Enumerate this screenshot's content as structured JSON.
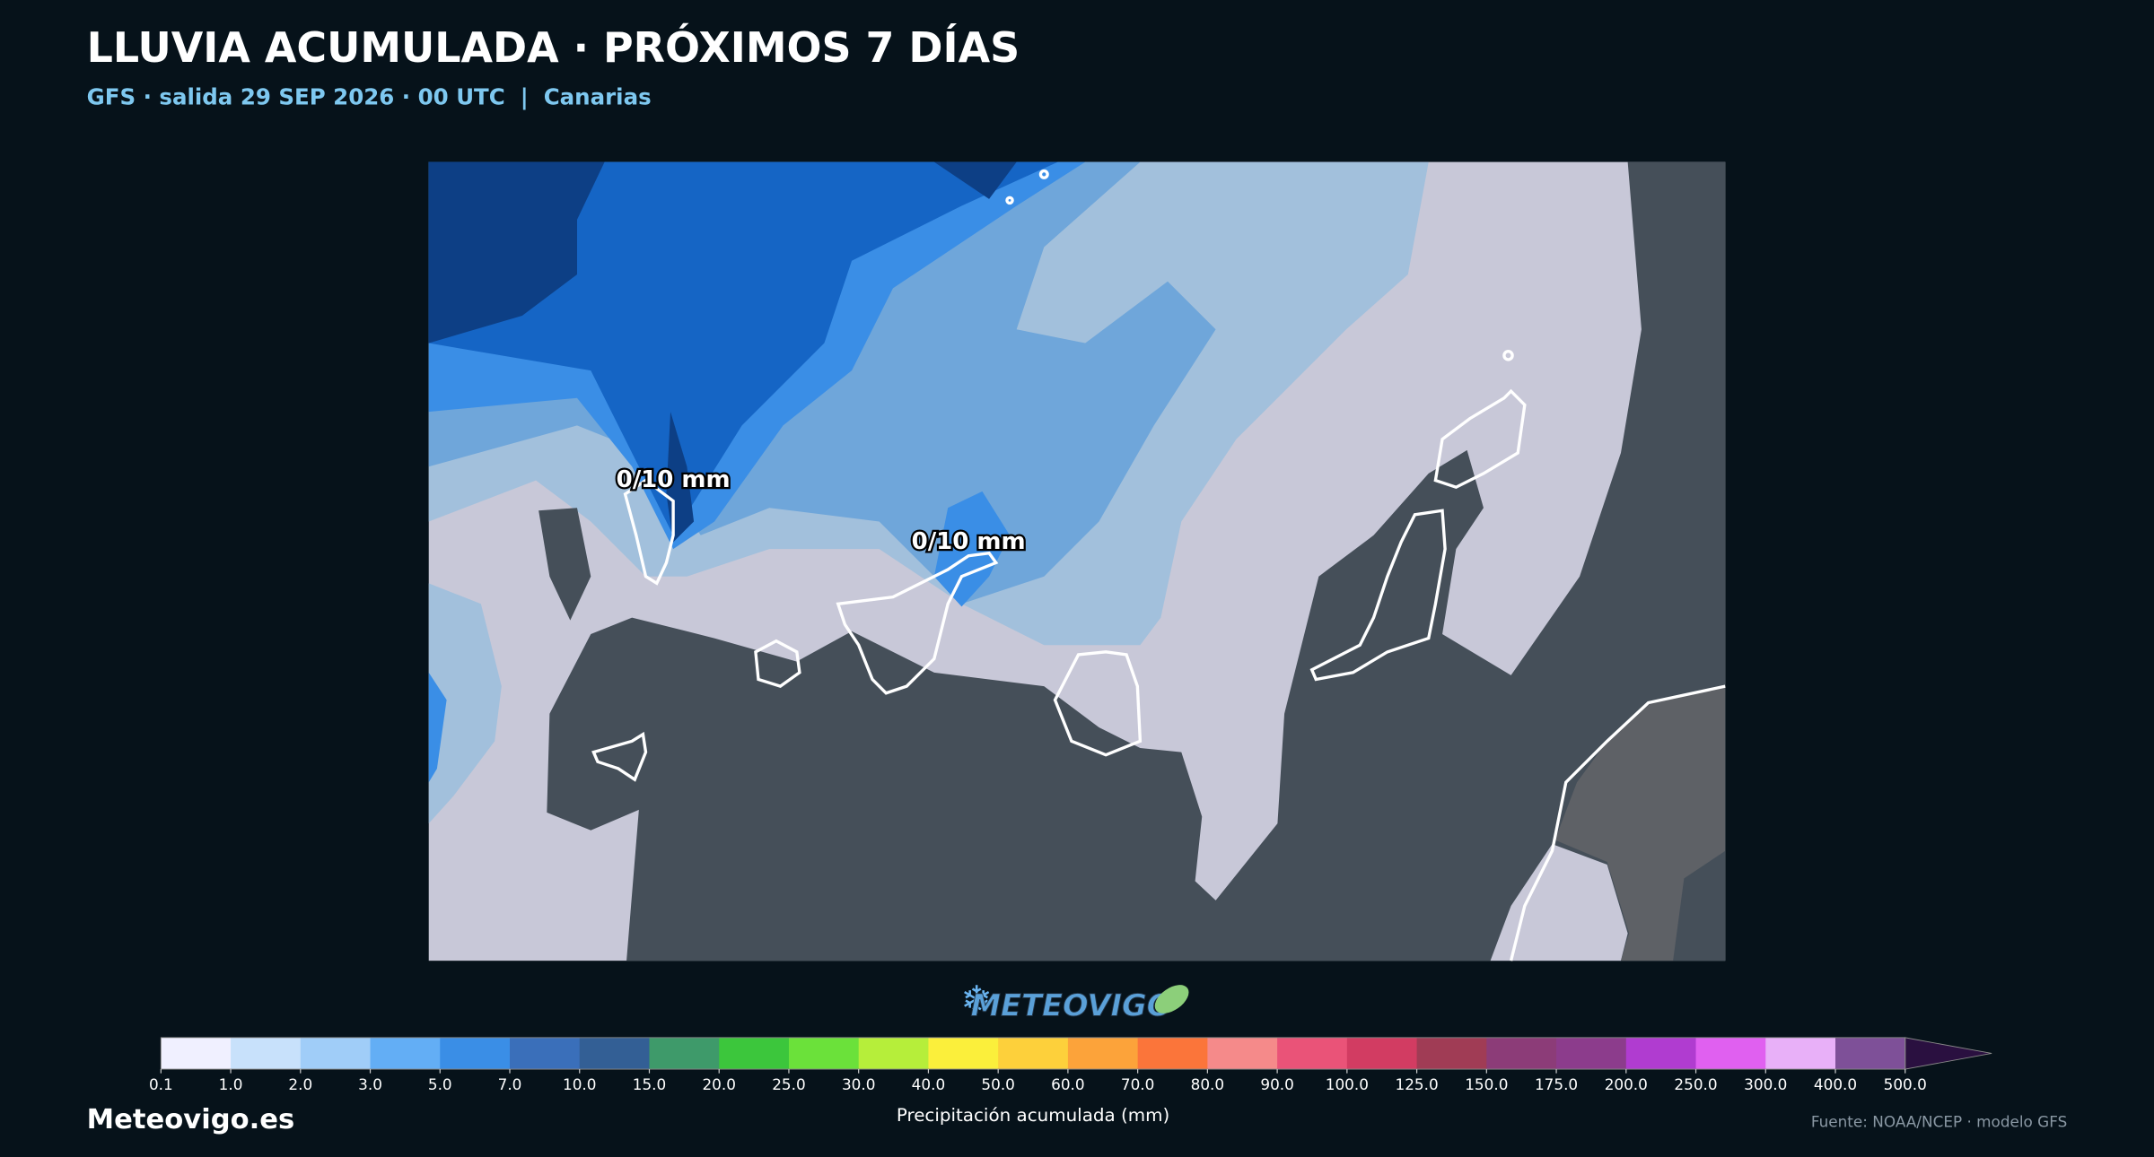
{
  "header": {
    "title": "LLUVIA ACUMULADA · PRÓXIMOS 7 DÍAS",
    "subtitle": "GFS · salida 29 SEP 2026 · 00 UTC  |  Canarias"
  },
  "map": {
    "annotations": [
      "0/10 mm",
      "0/10 mm"
    ]
  },
  "logo": "METEOVIGO",
  "colorbar": {
    "label": "Precipitación acumulada (mm)",
    "ticks": [
      0.1,
      {
        "value": 1,
        "label": "1.0"
      },
      {
        "value": 2,
        "label": "2.0"
      },
      {
        "value": 3,
        "label": "3.0"
      },
      {
        "value": 5,
        "label": "5.0"
      },
      {
        "value": 7,
        "label": "7.0"
      },
      {
        "value": 10,
        "label": "10.0"
      },
      {
        "value": 15,
        "label": "15.0"
      },
      {
        "value": 20,
        "label": "20.0"
      },
      {
        "value": 25,
        "label": "25.0"
      },
      {
        "value": 30,
        "label": "30.0"
      },
      {
        "value": 40,
        "label": "40.0"
      },
      {
        "value": 50,
        "label": "50.0"
      },
      {
        "value": 60,
        "label": "60.0"
      },
      {
        "value": 70,
        "label": "70.0"
      },
      {
        "value": 80,
        "label": "80.0"
      },
      {
        "value": 90,
        "label": "90.0"
      },
      {
        "value": 100,
        "label": "100.0"
      },
      {
        "value": 125,
        "label": "125.0"
      },
      {
        "value": 150,
        "label": "150.0"
      },
      {
        "value": 175,
        "label": "175.0"
      },
      {
        "value": 200,
        "label": "200.0"
      },
      {
        "value": 250,
        "label": "250.0"
      },
      {
        "value": 300,
        "label": "300.0"
      },
      {
        "value": 400,
        "label": "400.0"
      },
      {
        "value": 500,
        "label": "500.0"
      }
    ],
    "colors": [
      "#f0f0ff",
      "#c8e1fb",
      "#a0cdf8",
      "#63aef5",
      "#3a8ee6",
      "#3a6fba",
      "#335f95",
      "#3e9a6a",
      "#3cc63c",
      "#6be13a",
      "#b6ee3a",
      "#fbef3b",
      "#fdd03b",
      "#fca33a",
      "#fb753a",
      "#f58a8a",
      "#ea5378",
      "#d23c62",
      "#a03c55",
      "#8c3c78",
      "#8c3c8c",
      "#b03cd0",
      "#e060f0",
      "#e8b0f8",
      "#7e5098"
    ],
    "extend_color": "#2a1040"
  },
  "footer": {
    "site": "Meteovigo.es",
    "source": "Fuente: NOAA/NCEP · modelo GFS"
  }
}
